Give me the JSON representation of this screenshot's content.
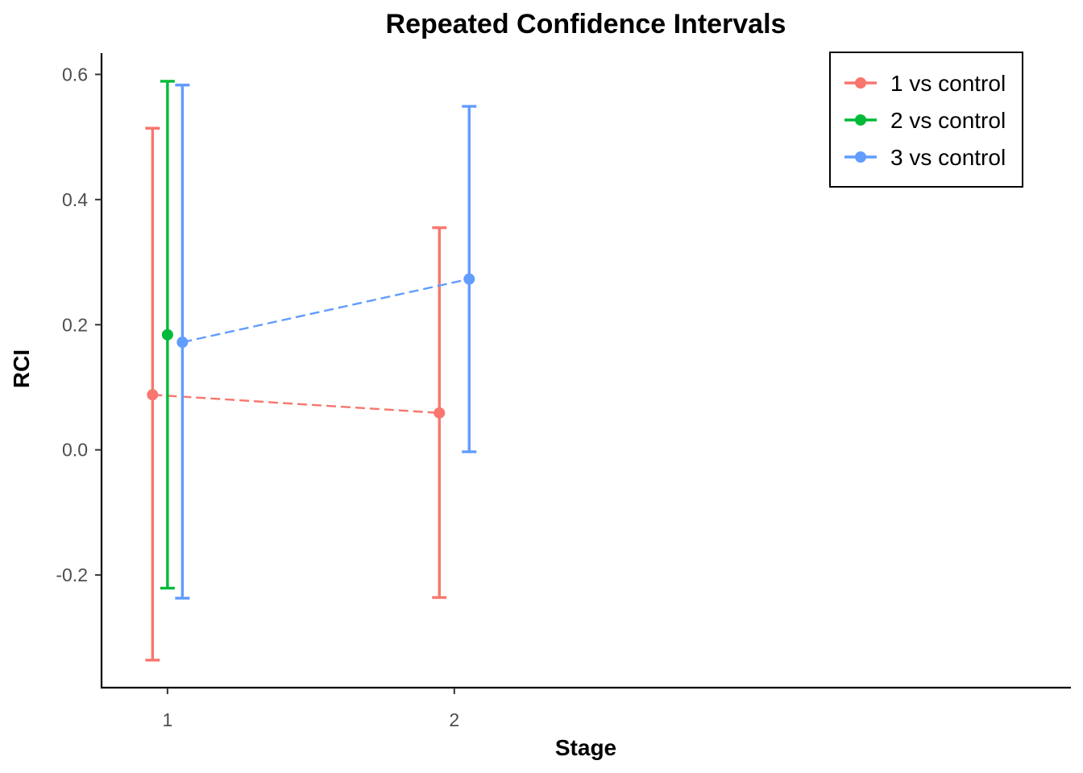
{
  "chart_data": {
    "type": "line",
    "title": "Repeated Confidence Intervals",
    "xlabel": "Stage",
    "ylabel": "RCI",
    "x_ticks": [
      "1",
      "2"
    ],
    "y_ticks": [
      "-0.2",
      "0.0",
      "0.2",
      "0.4",
      "0.6"
    ],
    "y_tick_values": [
      -0.2,
      0.0,
      0.2,
      0.4,
      0.6
    ],
    "xlim": [
      0.77,
      4.15
    ],
    "ylim": [
      -0.38,
      0.634
    ],
    "grid": false,
    "legend_position": "top-right",
    "series": [
      {
        "name": "1 vs control",
        "color": "#F8766D",
        "points": [
          {
            "stage": 1,
            "estimate": 0.088,
            "lower": -0.336,
            "upper": 0.514
          },
          {
            "stage": 2,
            "estimate": 0.059,
            "lower": -0.236,
            "upper": 0.355
          }
        ]
      },
      {
        "name": "2 vs control",
        "color": "#00BA38",
        "points": [
          {
            "stage": 1,
            "estimate": 0.184,
            "lower": -0.221,
            "upper": 0.589
          }
        ]
      },
      {
        "name": "3 vs control",
        "color": "#619CFF",
        "points": [
          {
            "stage": 1,
            "estimate": 0.172,
            "lower": -0.237,
            "upper": 0.583
          },
          {
            "stage": 2,
            "estimate": 0.273,
            "lower": -0.003,
            "upper": 0.549
          }
        ]
      }
    ]
  }
}
